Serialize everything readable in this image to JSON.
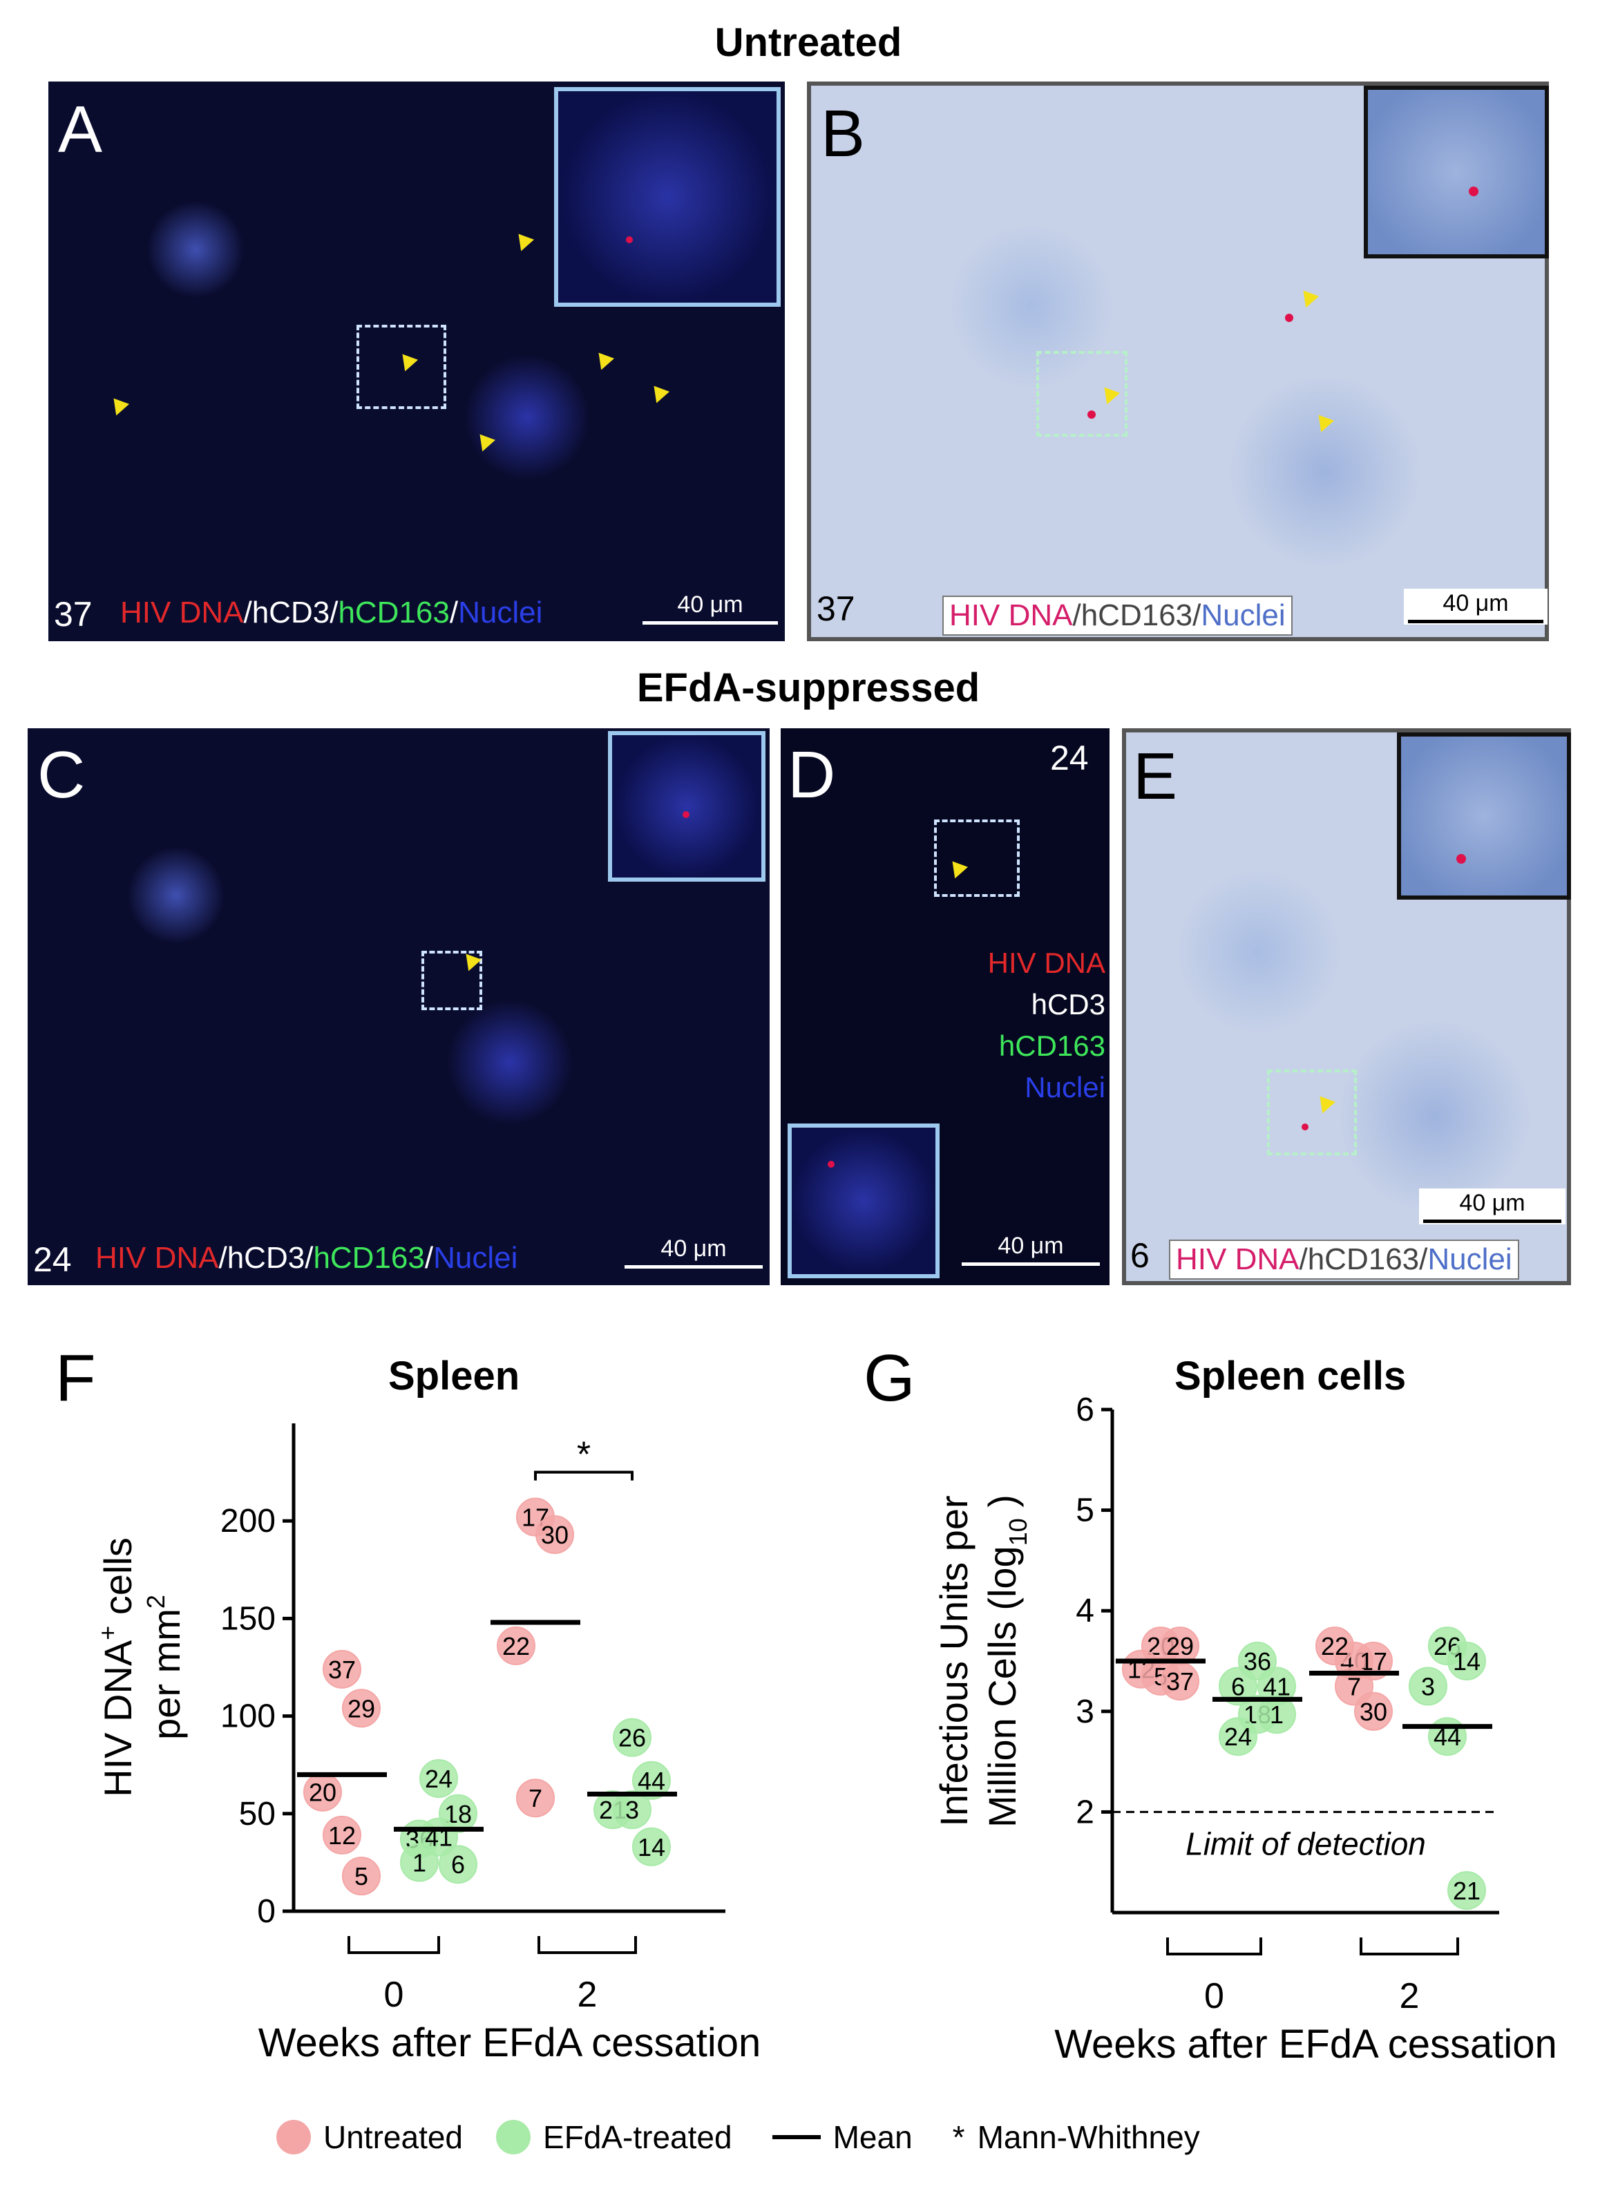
{
  "titles": {
    "untreated": "Untreated",
    "suppressed": "EFdA-suppressed"
  },
  "panels": {
    "A": {
      "letter": "A",
      "mouse": "37",
      "stain": [
        "HIV DNA",
        "/hCD3/",
        "hCD163",
        "/",
        "Nuclei"
      ],
      "scale": "40 μm"
    },
    "B": {
      "letter": "B",
      "mouse": "37",
      "stain": [
        "HIV DNA",
        "/hCD163/",
        "Nuclei"
      ],
      "scale": "40 μm"
    },
    "C": {
      "letter": "C",
      "mouse": "24",
      "stain": [
        "HIV DNA",
        "/hCD3/",
        "hCD163",
        "/",
        "Nuclei"
      ],
      "scale": "40 μm"
    },
    "D": {
      "letter": "D",
      "mouse": "24",
      "legend": [
        "HIV DNA",
        "hCD3",
        "hCD163",
        "Nuclei"
      ],
      "scale": "40 μm"
    },
    "E": {
      "letter": "E",
      "mouse": "6",
      "stain": [
        "HIV DNA",
        "/hCD163/",
        "Nuclei"
      ],
      "scale": "40 μm"
    }
  },
  "chart_data": [
    {
      "letter": "F",
      "type": "scatter",
      "title": "Spleen",
      "ylabel_line1": "HIV DNA",
      "ylabel_sup": "+",
      "ylabel_line1b": " cells",
      "ylabel_line2": "per mm",
      "ylabel_line2_sup": "2",
      "xlabel": "Weeks after EFdA cessation",
      "ylim": [
        0,
        250
      ],
      "yticks": [
        0,
        50,
        100,
        150,
        200
      ],
      "groups": [
        {
          "week": "0",
          "label": "0"
        },
        {
          "week": "2",
          "label": "2"
        }
      ],
      "series": [
        {
          "name": "Untreated",
          "color": "#f4a6a6",
          "points": [
            {
              "week": "0",
              "id": "37",
              "y": 124
            },
            {
              "week": "0",
              "id": "29",
              "y": 104
            },
            {
              "week": "0",
              "id": "20",
              "y": 61
            },
            {
              "week": "0",
              "id": "12",
              "y": 39
            },
            {
              "week": "0",
              "id": "5",
              "y": 18
            },
            {
              "week": "2",
              "id": "17",
              "y": 202
            },
            {
              "week": "2",
              "id": "30",
              "y": 193
            },
            {
              "week": "2",
              "id": "22",
              "y": 136
            },
            {
              "week": "2",
              "id": "7",
              "y": 58
            }
          ],
          "means": [
            {
              "week": "0",
              "y": 70
            },
            {
              "week": "2",
              "y": 148
            }
          ]
        },
        {
          "name": "EFdA-treated",
          "color": "#a8eaa8",
          "points": [
            {
              "week": "0",
              "id": "24",
              "y": 68
            },
            {
              "week": "0",
              "id": "18",
              "y": 50
            },
            {
              "week": "0",
              "id": "36",
              "y": 37
            },
            {
              "week": "0",
              "id": "41",
              "y": 38
            },
            {
              "week": "0",
              "id": "6",
              "y": 24
            },
            {
              "week": "0",
              "id": "1",
              "y": 25
            },
            {
              "week": "2",
              "id": "26",
              "y": 89
            },
            {
              "week": "2",
              "id": "44",
              "y": 67
            },
            {
              "week": "2",
              "id": "21",
              "y": 52
            },
            {
              "week": "2",
              "id": "3",
              "y": 52
            },
            {
              "week": "2",
              "id": "14",
              "y": 33
            }
          ],
          "means": [
            {
              "week": "0",
              "y": 42
            },
            {
              "week": "2",
              "y": 60
            }
          ]
        }
      ],
      "annotation": "*"
    },
    {
      "letter": "G",
      "type": "scatter",
      "title": "Spleen cells",
      "ylabel_line1": "Infectious Units per",
      "ylabel_line2": "Million Cells  (log",
      "ylabel_sub": "10",
      "ylabel_close": " )",
      "xlabel": "Weeks after EFdA cessation",
      "ylim": [
        1,
        6
      ],
      "yticks": [
        2,
        3,
        4,
        5,
        6
      ],
      "limit_label": "Limit of detection",
      "limit_value": 2,
      "groups": [
        {
          "week": "0",
          "label": "0"
        },
        {
          "week": "2",
          "label": "2"
        }
      ],
      "series": [
        {
          "name": "Untreated",
          "color": "#f4a6a6",
          "points": [
            {
              "week": "0",
              "id": "20",
              "y": 3.65
            },
            {
              "week": "0",
              "id": "29",
              "y": 3.65
            },
            {
              "week": "0",
              "id": "12",
              "y": 3.42
            },
            {
              "week": "0",
              "id": "5",
              "y": 3.35
            },
            {
              "week": "0",
              "id": "37",
              "y": 3.3
            },
            {
              "week": "2",
              "id": "40",
              "y": 3.5
            },
            {
              "week": "2",
              "id": "17",
              "y": 3.5
            },
            {
              "week": "2",
              "id": "22",
              "y": 3.65
            },
            {
              "week": "2",
              "id": "7",
              "y": 3.25
            },
            {
              "week": "2",
              "id": "30",
              "y": 3.0
            }
          ],
          "means": [
            {
              "week": "0",
              "y": 3.5
            },
            {
              "week": "2",
              "y": 3.38
            }
          ]
        },
        {
          "name": "EFdA-treated",
          "color": "#a8eaa8",
          "points": [
            {
              "week": "0",
              "id": "36",
              "y": 3.5
            },
            {
              "week": "0",
              "id": "41",
              "y": 3.25
            },
            {
              "week": "0",
              "id": "6",
              "y": 3.25
            },
            {
              "week": "0",
              "id": "18",
              "y": 2.97
            },
            {
              "week": "0",
              "id": "1",
              "y": 2.97
            },
            {
              "week": "0",
              "id": "24",
              "y": 2.75
            },
            {
              "week": "2",
              "id": "26",
              "y": 3.65
            },
            {
              "week": "2",
              "id": "14",
              "y": 3.5
            },
            {
              "week": "2",
              "id": "3",
              "y": 3.25
            },
            {
              "week": "2",
              "id": "44",
              "y": 2.75
            },
            {
              "week": "2",
              "id": "21",
              "y": 1.22
            }
          ],
          "means": [
            {
              "week": "0",
              "y": 3.12
            },
            {
              "week": "2",
              "y": 2.85
            }
          ]
        }
      ]
    }
  ],
  "legend": {
    "untreated": "Untreated",
    "treated": "EFdA-treated",
    "mean": "Mean",
    "star": "*",
    "test": "Mann-Whithney"
  },
  "colors": {
    "untreated": "#f4a6a6",
    "treated": "#a8eaa8",
    "arrow": "#f4e11a",
    "hiv_dot": "#e0104a"
  }
}
